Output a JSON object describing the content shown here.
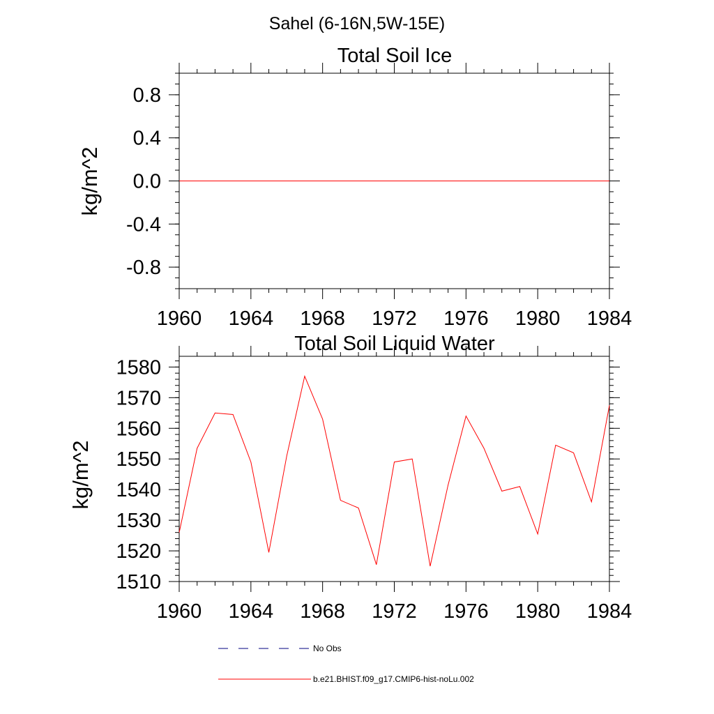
{
  "figure": {
    "suptitle": "Sahel (6-16N,5W-15E)",
    "legend": [
      {
        "label": "No Obs",
        "color": "#000080",
        "dash": "dashed"
      },
      {
        "label": "b.e21.BHIST.f09_g17.CMIP6-hist-noLu.002",
        "color": "#ff0000",
        "dash": "solid"
      }
    ]
  },
  "chart_data": [
    {
      "type": "line",
      "title": "Total Soil Ice",
      "xlabel": "",
      "ylabel": "kg/m^2",
      "xlim": [
        1960,
        1984
      ],
      "ylim": [
        -1.0,
        1.0
      ],
      "xticks": [
        "1960",
        "1964",
        "1968",
        "1972",
        "1976",
        "1980",
        "1984"
      ],
      "yticks": [
        "-0.8",
        "-0.4",
        "0.0",
        "0.4",
        "0.8"
      ],
      "grid": false,
      "series": [
        {
          "name": "b.e21.BHIST.f09_g17.CMIP6-hist-noLu.002",
          "color": "#ff0000",
          "x": [
            1960,
            1961,
            1962,
            1963,
            1964,
            1965,
            1966,
            1967,
            1968,
            1969,
            1970,
            1971,
            1972,
            1973,
            1974,
            1975,
            1976,
            1977,
            1978,
            1979,
            1980,
            1981,
            1982,
            1983,
            1984
          ],
          "y": [
            0,
            0,
            0,
            0,
            0,
            0,
            0,
            0,
            0,
            0,
            0,
            0,
            0,
            0,
            0,
            0,
            0,
            0,
            0,
            0,
            0,
            0,
            0,
            0,
            0
          ]
        }
      ]
    },
    {
      "type": "line",
      "title": "Total Soil Liquid Water",
      "xlabel": "",
      "ylabel": "kg/m^2",
      "xlim": [
        1960,
        1984
      ],
      "ylim": [
        1510,
        1583.5
      ],
      "xticks": [
        "1960",
        "1964",
        "1968",
        "1972",
        "1976",
        "1980",
        "1984"
      ],
      "yticks": [
        "1510",
        "1520",
        "1530",
        "1540",
        "1550",
        "1560",
        "1570",
        "1580"
      ],
      "grid": false,
      "series": [
        {
          "name": "b.e21.BHIST.f09_g17.CMIP6-hist-noLu.002",
          "color": "#ff0000",
          "x": [
            1960,
            1961,
            1962,
            1963,
            1964,
            1965,
            1966,
            1967,
            1968,
            1969,
            1970,
            1971,
            1972,
            1973,
            1974,
            1975,
            1976,
            1977,
            1978,
            1979,
            1980,
            1981,
            1982,
            1983,
            1984
          ],
          "y": [
            1526,
            1553.5,
            1565,
            1564.5,
            1549,
            1519.5,
            1551,
            1577,
            1563,
            1536.5,
            1534,
            1515.5,
            1549,
            1550,
            1515,
            1541.5,
            1564,
            1553.5,
            1539.5,
            1541,
            1525.5,
            1554.5,
            1552,
            1536,
            1567.5
          ]
        }
      ]
    }
  ]
}
